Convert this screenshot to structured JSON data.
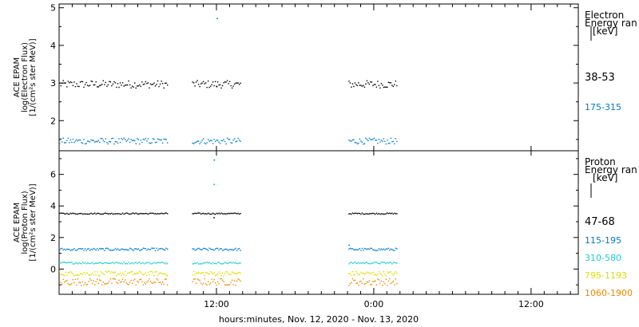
{
  "chart_data": [
    {
      "type": "scatter",
      "ylabel": [
        "ACE EPAM",
        "log(Electron Flux)",
        "[1/(cm²s ster MeV)]"
      ],
      "yticks": [
        2,
        3,
        4,
        5
      ],
      "ylim": [
        1.2,
        5.1
      ],
      "legend_title": [
        "Electron",
        "Energy ran",
        "[keV]"
      ],
      "x_segments": [
        [
          0.0,
          0.3465
        ],
        [
          0.4225,
          0.5785
        ],
        [
          0.9195,
          1.0755
        ]
      ],
      "spikes": [
        {
          "x": 0.4995,
          "y": 2.92,
          "color": "#000000"
        },
        {
          "x": 0.5005,
          "y": 4.73,
          "color": "#0077cc"
        }
      ],
      "series": [
        {
          "name": "38-53",
          "level": 2.98,
          "spread": 0.1,
          "color": "#000000"
        },
        {
          "name": "175-315",
          "level": 1.47,
          "spread": 0.08,
          "color": "#0077cc"
        }
      ]
    },
    {
      "type": "scatter",
      "ylabel": [
        "ACE EPAM",
        "log(Proton Flux)",
        "[1/(cm²s ster MeV)]"
      ],
      "yticks": [
        0,
        2,
        4,
        6
      ],
      "ylim": [
        -1.6,
        7.5
      ],
      "legend_title": [
        "Proton",
        "Energy ran",
        "[keV]"
      ],
      "x_segments": [
        [
          0.0,
          0.3465
        ],
        [
          0.4225,
          0.5785
        ],
        [
          0.9195,
          1.0755
        ]
      ],
      "spikes": [
        {
          "x": 0.4905,
          "y": 3.3,
          "color": "#000000"
        },
        {
          "x": 0.4908,
          "y": 5.4,
          "color": "#00bbbb"
        },
        {
          "x": 0.4912,
          "y": 6.95,
          "color": "#0077cc"
        },
        {
          "x": 0.9195,
          "y": 1.55,
          "color": "#0077cc"
        }
      ],
      "series": [
        {
          "name": "47-68",
          "level": 3.55,
          "spread": 0.04,
          "color": "#000000"
        },
        {
          "name": "115-195",
          "level": 1.28,
          "spread": 0.08,
          "color": "#0077cc"
        },
        {
          "name": "310-580",
          "level": 0.42,
          "spread": 0.06,
          "color": "#22cccc"
        },
        {
          "name": "795-1193",
          "level": -0.25,
          "spread": 0.14,
          "color": "#dddd00"
        },
        {
          "name": "1060-1900",
          "level": -0.78,
          "spread": 0.22,
          "color": "#ee8800"
        }
      ]
    }
  ],
  "x_axis": {
    "ticks": [
      {
        "label": "12:00",
        "x": 0.5
      },
      {
        "label": "0:00",
        "x": 1.0
      },
      {
        "label": "12:00",
        "x": 1.5
      }
    ],
    "xlim": [
      0.0,
      1.65
    ],
    "xlabel": "hours:minutes, Nov. 12, 2020 - Nov. 13, 2020"
  }
}
